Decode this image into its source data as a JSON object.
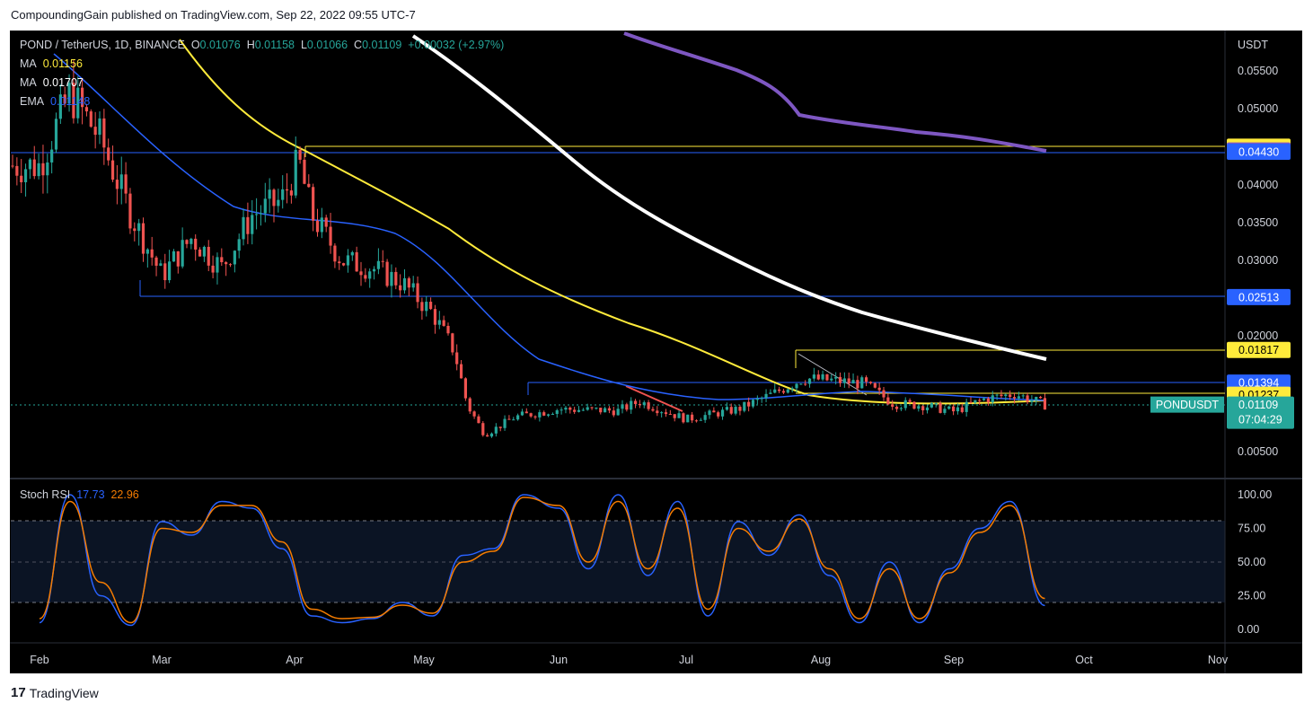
{
  "publish_line": "CompoundingGain published on TradingView.com, Sep 22, 2022 09:55 UTC-7",
  "header": {
    "symbol": "POND / TetherUS, 1D, BINANCE",
    "o_label": "O",
    "o_value": "0.01076",
    "h_label": "H",
    "h_value": "0.01158",
    "l_label": "L",
    "l_value": "0.01066",
    "c_label": "C",
    "c_value": "0.01109",
    "change": "+0.00032 (+2.97%)"
  },
  "indicators": [
    {
      "label": "MA",
      "value": "0.01156",
      "color": "#ffeb3b"
    },
    {
      "label": "MA",
      "value": "0.01707",
      "color": "#ffffff"
    },
    {
      "label": "EMA",
      "value": "0.01148",
      "color": "#2962ff"
    }
  ],
  "footer_brand": "TradingView",
  "chart_data": [
    {
      "type": "candlestick",
      "title": "POND / TetherUS, 1D, BINANCE",
      "y_unit": "USDT",
      "y_ticks": [
        "0.05500",
        "0.05000",
        "0.04500",
        "0.04000",
        "0.03500",
        "0.03000",
        "0.02000",
        "0.00500"
      ],
      "x_ticks": [
        "Feb",
        "Mar",
        "Apr",
        "May",
        "Jun",
        "Jul",
        "Aug",
        "Sep",
        "Oct",
        "Nov"
      ],
      "grid": false,
      "series": [
        {
          "kind": "close_path",
          "color": "#26a69a",
          "x": [
            "Feb 1",
            "Feb 8",
            "Feb 15",
            "Feb 22",
            "Mar 1",
            "Mar 8",
            "Mar 15",
            "Mar 22",
            "Mar 29",
            "Apr 2",
            "Apr 5",
            "Apr 12",
            "Apr 19",
            "Apr 26",
            "May 3",
            "May 8",
            "May 11",
            "May 15",
            "May 22",
            "Jun 1",
            "Jun 15",
            "Jun 20",
            "Jul 1",
            "Jul 13",
            "Jul 21",
            "Jul 28",
            "Aug 4",
            "Aug 11",
            "Aug 18",
            "Aug 25",
            "Sep 1",
            "Sep 8",
            "Sep 15",
            "Sep 22"
          ],
          "close": [
            0.0425,
            0.052,
            0.046,
            0.036,
            0.028,
            0.033,
            0.029,
            0.036,
            0.038,
            0.043,
            0.036,
            0.03,
            0.029,
            0.027,
            0.023,
            0.018,
            0.011,
            0.0072,
            0.0095,
            0.0105,
            0.0103,
            0.0115,
            0.0092,
            0.0105,
            0.0125,
            0.0145,
            0.0142,
            0.0138,
            0.0112,
            0.011,
            0.0102,
            0.0118,
            0.0125,
            0.01109
          ]
        },
        {
          "name": "MA",
          "color": "#ffeb3b",
          "last": 0.01156
        },
        {
          "name": "MA",
          "color": "#ffffff",
          "last": 0.01707
        },
        {
          "name": "EMA",
          "color": "#2962ff",
          "last": 0.01148
        }
      ],
      "levels": [
        {
          "value": "0.04495",
          "color": "#ffeb3b",
          "text_color": "#000000"
        },
        {
          "value": "0.04446",
          "color": "#7e57c2",
          "text_color": "#ffffff"
        },
        {
          "value": "0.04430",
          "color": "#2962ff",
          "text_color": "#ffffff"
        },
        {
          "value": "0.02513",
          "color": "#2962ff",
          "text_color": "#ffffff"
        },
        {
          "value": "0.01817",
          "color": "#ffeb3b",
          "text_color": "#000000"
        },
        {
          "value": "0.01394",
          "color": "#2962ff",
          "text_color": "#ffffff"
        },
        {
          "value": "0.01237",
          "color": "#ffeb3b",
          "text_color": "#000000"
        }
      ],
      "symbol_tag": "PONDUSDT",
      "last_price": "0.01109",
      "countdown": "07:04:29"
    },
    {
      "type": "line",
      "title": "Stoch RSI",
      "y_ticks": [
        "100.00",
        "75.00",
        "50.00",
        "25.00",
        "0.00"
      ],
      "levels": [
        80,
        50,
        20
      ],
      "series": [
        {
          "name": "Stoch RSI",
          "label": "17.73",
          "color": "#2962ff",
          "x": [
            "Feb 1",
            "Feb 8",
            "Feb 15",
            "Feb 22",
            "Mar 1",
            "Mar 8",
            "Mar 15",
            "Mar 22",
            "Mar 29",
            "Apr 5",
            "Apr 12",
            "Apr 19",
            "Apr 26",
            "May 3",
            "May 10",
            "May 17",
            "May 24",
            "Jun 1",
            "Jun 8",
            "Jun 15",
            "Jun 22",
            "Jun 29",
            "Jul 6",
            "Jul 13",
            "Jul 20",
            "Jul 27",
            "Aug 3",
            "Aug 10",
            "Aug 17",
            "Aug 24",
            "Aug 31",
            "Sep 7",
            "Sep 14",
            "Sep 22"
          ],
          "values": [
            5,
            100,
            25,
            3,
            80,
            70,
            95,
            90,
            60,
            10,
            5,
            8,
            20,
            10,
            55,
            60,
            100,
            90,
            45,
            100,
            40,
            95,
            10,
            80,
            55,
            85,
            40,
            5,
            50,
            5,
            45,
            75,
            95,
            17.73
          ]
        },
        {
          "name": "Stoch RSI signal",
          "label": "22.96",
          "color": "#f57c00",
          "x": [
            "Feb 1",
            "Feb 8",
            "Feb 15",
            "Feb 22",
            "Mar 1",
            "Mar 8",
            "Mar 15",
            "Mar 22",
            "Mar 29",
            "Apr 5",
            "Apr 12",
            "Apr 19",
            "Apr 26",
            "May 3",
            "May 10",
            "May 17",
            "May 24",
            "Jun 1",
            "Jun 8",
            "Jun 15",
            "Jun 22",
            "Jun 29",
            "Jul 6",
            "Jul 13",
            "Jul 20",
            "Jul 27",
            "Aug 3",
            "Aug 10",
            "Aug 17",
            "Aug 24",
            "Aug 31",
            "Sep 7",
            "Sep 14",
            "Sep 22"
          ],
          "values": [
            8,
            95,
            35,
            5,
            75,
            72,
            92,
            92,
            65,
            15,
            8,
            9,
            18,
            12,
            50,
            58,
            98,
            92,
            50,
            95,
            45,
            90,
            15,
            75,
            58,
            82,
            45,
            8,
            45,
            8,
            42,
            72,
            92,
            22.96
          ]
        }
      ]
    }
  ]
}
